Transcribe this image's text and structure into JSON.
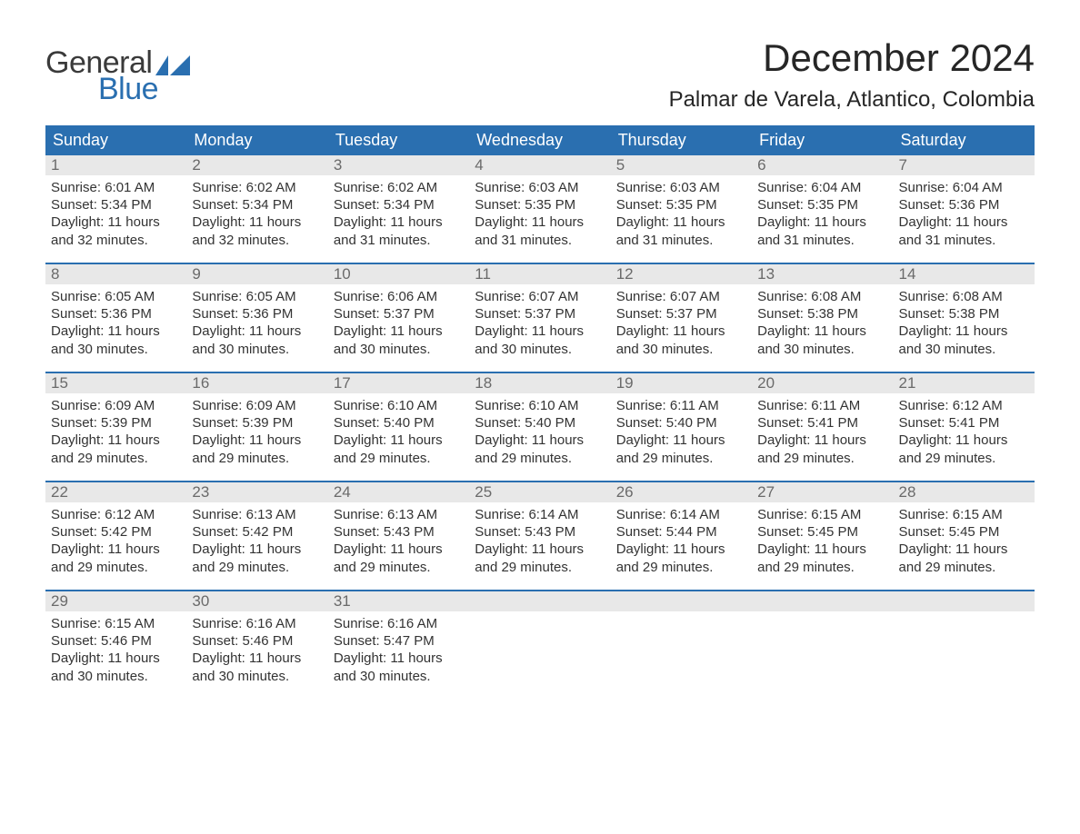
{
  "logo": {
    "text_general": "General",
    "text_blue": "Blue",
    "general_color": "#3a3a3a",
    "blue_color": "#2a6fb0"
  },
  "title": "December 2024",
  "location": "Palmar de Varela, Atlantico, Colombia",
  "colors": {
    "header_bg": "#2a6fb0",
    "header_text": "#ffffff",
    "daynum_bg": "#e8e8e8",
    "daynum_text": "#6a6a6a",
    "body_text": "#333333",
    "week_border": "#2a6fb0",
    "page_bg": "#ffffff"
  },
  "day_names": [
    "Sunday",
    "Monday",
    "Tuesday",
    "Wednesday",
    "Thursday",
    "Friday",
    "Saturday"
  ],
  "weeks": [
    [
      {
        "n": "1",
        "sr": "6:01 AM",
        "ss": "5:34 PM",
        "dl": "11 hours and 32 minutes."
      },
      {
        "n": "2",
        "sr": "6:02 AM",
        "ss": "5:34 PM",
        "dl": "11 hours and 32 minutes."
      },
      {
        "n": "3",
        "sr": "6:02 AM",
        "ss": "5:34 PM",
        "dl": "11 hours and 31 minutes."
      },
      {
        "n": "4",
        "sr": "6:03 AM",
        "ss": "5:35 PM",
        "dl": "11 hours and 31 minutes."
      },
      {
        "n": "5",
        "sr": "6:03 AM",
        "ss": "5:35 PM",
        "dl": "11 hours and 31 minutes."
      },
      {
        "n": "6",
        "sr": "6:04 AM",
        "ss": "5:35 PM",
        "dl": "11 hours and 31 minutes."
      },
      {
        "n": "7",
        "sr": "6:04 AM",
        "ss": "5:36 PM",
        "dl": "11 hours and 31 minutes."
      }
    ],
    [
      {
        "n": "8",
        "sr": "6:05 AM",
        "ss": "5:36 PM",
        "dl": "11 hours and 30 minutes."
      },
      {
        "n": "9",
        "sr": "6:05 AM",
        "ss": "5:36 PM",
        "dl": "11 hours and 30 minutes."
      },
      {
        "n": "10",
        "sr": "6:06 AM",
        "ss": "5:37 PM",
        "dl": "11 hours and 30 minutes."
      },
      {
        "n": "11",
        "sr": "6:07 AM",
        "ss": "5:37 PM",
        "dl": "11 hours and 30 minutes."
      },
      {
        "n": "12",
        "sr": "6:07 AM",
        "ss": "5:37 PM",
        "dl": "11 hours and 30 minutes."
      },
      {
        "n": "13",
        "sr": "6:08 AM",
        "ss": "5:38 PM",
        "dl": "11 hours and 30 minutes."
      },
      {
        "n": "14",
        "sr": "6:08 AM",
        "ss": "5:38 PM",
        "dl": "11 hours and 30 minutes."
      }
    ],
    [
      {
        "n": "15",
        "sr": "6:09 AM",
        "ss": "5:39 PM",
        "dl": "11 hours and 29 minutes."
      },
      {
        "n": "16",
        "sr": "6:09 AM",
        "ss": "5:39 PM",
        "dl": "11 hours and 29 minutes."
      },
      {
        "n": "17",
        "sr": "6:10 AM",
        "ss": "5:40 PM",
        "dl": "11 hours and 29 minutes."
      },
      {
        "n": "18",
        "sr": "6:10 AM",
        "ss": "5:40 PM",
        "dl": "11 hours and 29 minutes."
      },
      {
        "n": "19",
        "sr": "6:11 AM",
        "ss": "5:40 PM",
        "dl": "11 hours and 29 minutes."
      },
      {
        "n": "20",
        "sr": "6:11 AM",
        "ss": "5:41 PM",
        "dl": "11 hours and 29 minutes."
      },
      {
        "n": "21",
        "sr": "6:12 AM",
        "ss": "5:41 PM",
        "dl": "11 hours and 29 minutes."
      }
    ],
    [
      {
        "n": "22",
        "sr": "6:12 AM",
        "ss": "5:42 PM",
        "dl": "11 hours and 29 minutes."
      },
      {
        "n": "23",
        "sr": "6:13 AM",
        "ss": "5:42 PM",
        "dl": "11 hours and 29 minutes."
      },
      {
        "n": "24",
        "sr": "6:13 AM",
        "ss": "5:43 PM",
        "dl": "11 hours and 29 minutes."
      },
      {
        "n": "25",
        "sr": "6:14 AM",
        "ss": "5:43 PM",
        "dl": "11 hours and 29 minutes."
      },
      {
        "n": "26",
        "sr": "6:14 AM",
        "ss": "5:44 PM",
        "dl": "11 hours and 29 minutes."
      },
      {
        "n": "27",
        "sr": "6:15 AM",
        "ss": "5:45 PM",
        "dl": "11 hours and 29 minutes."
      },
      {
        "n": "28",
        "sr": "6:15 AM",
        "ss": "5:45 PM",
        "dl": "11 hours and 29 minutes."
      }
    ],
    [
      {
        "n": "29",
        "sr": "6:15 AM",
        "ss": "5:46 PM",
        "dl": "11 hours and 30 minutes."
      },
      {
        "n": "30",
        "sr": "6:16 AM",
        "ss": "5:46 PM",
        "dl": "11 hours and 30 minutes."
      },
      {
        "n": "31",
        "sr": "6:16 AM",
        "ss": "5:47 PM",
        "dl": "11 hours and 30 minutes."
      },
      null,
      null,
      null,
      null
    ]
  ],
  "labels": {
    "sunrise": "Sunrise:",
    "sunset": "Sunset:",
    "daylight": "Daylight:"
  }
}
